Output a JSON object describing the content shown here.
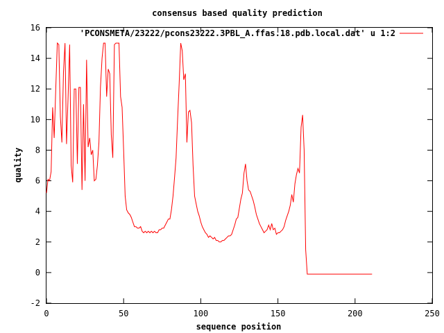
{
  "chart_data": {
    "type": "line",
    "title": "consensus based quality prediction",
    "xlabel": "sequence position",
    "ylabel": "quality",
    "xlim": [
      0,
      250
    ],
    "ylim": [
      -2,
      16
    ],
    "x_ticks": [
      0,
      50,
      100,
      150,
      200,
      250
    ],
    "y_ticks": [
      -2,
      0,
      2,
      4,
      6,
      8,
      10,
      12,
      14,
      16
    ],
    "grid": false,
    "legend_position": "top-right",
    "series": [
      {
        "name": "'PCONSMETA/23222/pcons23222.3PBL_A.ffas.18.pdb.local.dat' u 1:2",
        "color": "#ff0000",
        "points": [
          [
            0,
            5.2
          ],
          [
            1,
            6.1
          ],
          [
            2,
            6.0
          ],
          [
            3,
            6.6
          ],
          [
            4,
            10.8
          ],
          [
            5,
            8.8
          ],
          [
            6,
            11.9
          ],
          [
            7,
            15.0
          ],
          [
            8,
            14.9
          ],
          [
            9,
            10.2
          ],
          [
            10,
            8.5
          ],
          [
            11,
            13.1
          ],
          [
            12,
            15.0
          ],
          [
            13,
            8.4
          ],
          [
            14,
            11.4
          ],
          [
            15,
            14.9
          ],
          [
            16,
            7.0
          ],
          [
            17,
            5.9
          ],
          [
            18,
            12.0
          ],
          [
            19,
            12.0
          ],
          [
            20,
            7.1
          ],
          [
            21,
            12.1
          ],
          [
            22,
            12.1
          ],
          [
            23,
            5.4
          ],
          [
            24,
            11.0
          ],
          [
            25,
            6.0
          ],
          [
            26,
            13.9
          ],
          [
            27,
            8.2
          ],
          [
            28,
            8.8
          ],
          [
            29,
            7.7
          ],
          [
            30,
            8.0
          ],
          [
            31,
            6.0
          ],
          [
            32,
            6.1
          ],
          [
            33,
            7.0
          ],
          [
            34,
            8.5
          ],
          [
            35,
            12.1
          ],
          [
            36,
            14.0
          ],
          [
            37,
            15.0
          ],
          [
            38,
            15.0
          ],
          [
            39,
            11.5
          ],
          [
            40,
            13.3
          ],
          [
            41,
            13.0
          ],
          [
            42,
            9.0
          ],
          [
            43,
            7.5
          ],
          [
            44,
            14.9
          ],
          [
            45,
            15.0
          ],
          [
            46,
            15.0
          ],
          [
            47,
            15.0
          ],
          [
            48,
            11.5
          ],
          [
            49,
            10.8
          ],
          [
            50,
            8.0
          ],
          [
            51,
            5.0
          ],
          [
            52,
            4.1
          ],
          [
            53,
            3.9
          ],
          [
            54,
            3.8
          ],
          [
            55,
            3.6
          ],
          [
            56,
            3.3
          ],
          [
            57,
            3.0
          ],
          [
            58,
            3.0
          ],
          [
            59,
            2.9
          ],
          [
            60,
            2.9
          ],
          [
            61,
            3.0
          ],
          [
            62,
            2.7
          ],
          [
            63,
            2.6
          ],
          [
            64,
            2.7
          ],
          [
            65,
            2.6
          ],
          [
            66,
            2.7
          ],
          [
            67,
            2.6
          ],
          [
            68,
            2.7
          ],
          [
            69,
            2.6
          ],
          [
            70,
            2.7
          ],
          [
            71,
            2.6
          ],
          [
            72,
            2.6
          ],
          [
            73,
            2.8
          ],
          [
            74,
            2.8
          ],
          [
            75,
            2.9
          ],
          [
            76,
            2.9
          ],
          [
            77,
            3.1
          ],
          [
            78,
            3.3
          ],
          [
            79,
            3.5
          ],
          [
            80,
            3.5
          ],
          [
            81,
            4.1
          ],
          [
            82,
            5.0
          ],
          [
            83,
            6.2
          ],
          [
            84,
            7.5
          ],
          [
            85,
            10.0
          ],
          [
            86,
            12.4
          ],
          [
            87,
            15.0
          ],
          [
            88,
            14.5
          ],
          [
            89,
            12.6
          ],
          [
            90,
            13.0
          ],
          [
            91,
            8.5
          ],
          [
            92,
            10.5
          ],
          [
            93,
            10.6
          ],
          [
            94,
            9.8
          ],
          [
            95,
            7.0
          ],
          [
            96,
            5.0
          ],
          [
            97,
            4.5
          ],
          [
            98,
            4.0
          ],
          [
            99,
            3.7
          ],
          [
            100,
            3.3
          ],
          [
            101,
            3.0
          ],
          [
            102,
            2.8
          ],
          [
            103,
            2.6
          ],
          [
            104,
            2.5
          ],
          [
            105,
            2.3
          ],
          [
            106,
            2.4
          ],
          [
            107,
            2.3
          ],
          [
            108,
            2.2
          ],
          [
            109,
            2.3
          ],
          [
            110,
            2.1
          ],
          [
            111,
            2.1
          ],
          [
            112,
            2.0
          ],
          [
            113,
            2.0
          ],
          [
            114,
            2.1
          ],
          [
            115,
            2.1
          ],
          [
            116,
            2.2
          ],
          [
            117,
            2.3
          ],
          [
            118,
            2.4
          ],
          [
            119,
            2.4
          ],
          [
            120,
            2.5
          ],
          [
            121,
            2.8
          ],
          [
            122,
            3.1
          ],
          [
            123,
            3.5
          ],
          [
            124,
            3.6
          ],
          [
            125,
            4.2
          ],
          [
            126,
            4.8
          ],
          [
            127,
            5.2
          ],
          [
            128,
            6.5
          ],
          [
            129,
            7.1
          ],
          [
            130,
            6.0
          ],
          [
            131,
            5.4
          ],
          [
            132,
            5.3
          ],
          [
            133,
            5.0
          ],
          [
            134,
            4.7
          ],
          [
            135,
            4.3
          ],
          [
            136,
            3.8
          ],
          [
            137,
            3.5
          ],
          [
            138,
            3.2
          ],
          [
            139,
            3.0
          ],
          [
            140,
            2.8
          ],
          [
            141,
            2.6
          ],
          [
            142,
            2.7
          ],
          [
            143,
            2.8
          ],
          [
            144,
            3.1
          ],
          [
            145,
            2.8
          ],
          [
            146,
            3.2
          ],
          [
            147,
            2.8
          ],
          [
            148,
            2.9
          ],
          [
            149,
            2.5
          ],
          [
            150,
            2.6
          ],
          [
            151,
            2.6
          ],
          [
            152,
            2.7
          ],
          [
            153,
            2.8
          ],
          [
            154,
            3.0
          ],
          [
            155,
            3.4
          ],
          [
            156,
            3.7
          ],
          [
            157,
            4.0
          ],
          [
            158,
            4.4
          ],
          [
            159,
            5.1
          ],
          [
            160,
            4.6
          ],
          [
            161,
            5.8
          ],
          [
            162,
            6.4
          ],
          [
            163,
            6.8
          ],
          [
            164,
            6.5
          ],
          [
            165,
            9.5
          ],
          [
            166,
            10.3
          ],
          [
            167,
            8.0
          ],
          [
            168,
            1.5
          ],
          [
            169,
            -0.1
          ],
          [
            170,
            -0.1
          ],
          [
            175,
            -0.1
          ],
          [
            180,
            -0.1
          ],
          [
            185,
            -0.1
          ],
          [
            190,
            -0.1
          ],
          [
            195,
            -0.1
          ],
          [
            200,
            -0.1
          ],
          [
            205,
            -0.1
          ],
          [
            211,
            -0.1
          ]
        ]
      }
    ]
  }
}
